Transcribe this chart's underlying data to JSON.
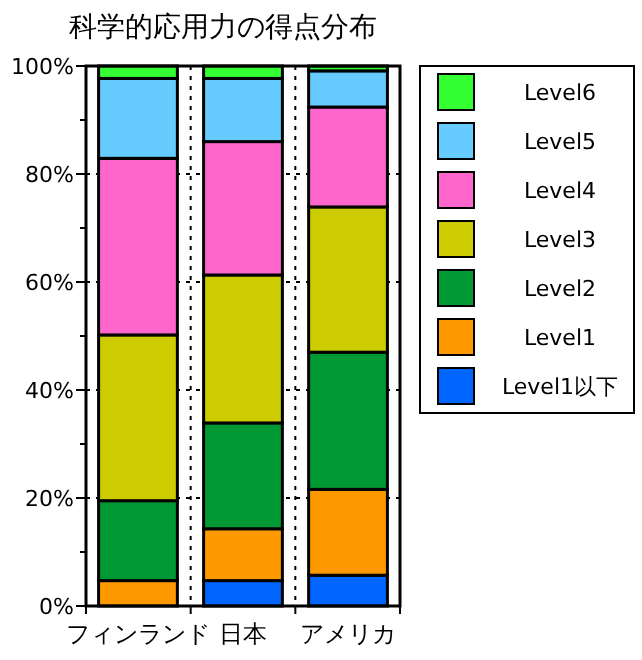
{
  "chart_data": {
    "type": "bar",
    "title": "科学的応用力の得点分布",
    "categories": [
      "フィンランド",
      "日本",
      "アメリカ"
    ],
    "stacked": true,
    "series": [
      {
        "name": "Level1以下",
        "color": "#0066ff",
        "values": [
          null,
          4.7,
          5.7
        ]
      },
      {
        "name": "Level1",
        "color": "#ff9900",
        "values": [
          4.7,
          9.6,
          15.9
        ]
      },
      {
        "name": "Level2",
        "color": "#009933",
        "values": [
          14.8,
          19.6,
          25.4
        ]
      },
      {
        "name": "Level3",
        "color": "#cccc00",
        "values": [
          30.7,
          27.4,
          26.9
        ]
      },
      {
        "name": "Level4",
        "color": "#ff66cc",
        "values": [
          32.7,
          24.7,
          18.5
        ]
      },
      {
        "name": "Level5",
        "color": "#66ccff",
        "values": [
          14.8,
          11.7,
          6.7
        ]
      },
      {
        "name": "Level6",
        "color": "#33ff33",
        "values": [
          2.3,
          2.3,
          0.9
        ]
      }
    ],
    "ylim": [
      0,
      100
    ],
    "yticks": [
      {
        "value": 0,
        "label": "0%"
      },
      {
        "value": 10,
        "label": null
      },
      {
        "value": 20,
        "label": "20%"
      },
      {
        "value": 30,
        "label": null
      },
      {
        "value": 40,
        "label": "40%"
      },
      {
        "value": 50,
        "label": null
      },
      {
        "value": 60,
        "label": "60%"
      },
      {
        "value": 70,
        "label": null
      },
      {
        "value": 80,
        "label": "80%"
      },
      {
        "value": 90,
        "label": null
      },
      {
        "value": 100,
        "label": "100%"
      }
    ],
    "grid": true,
    "legend": "right"
  }
}
